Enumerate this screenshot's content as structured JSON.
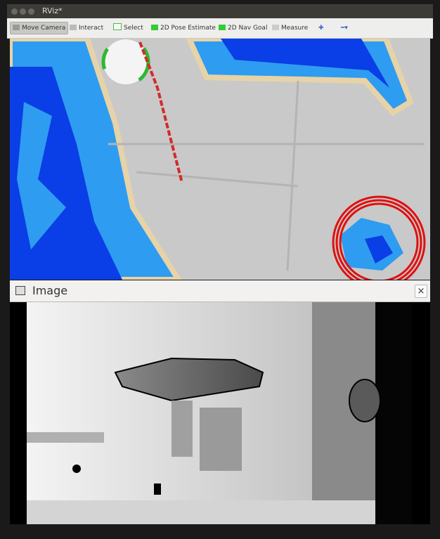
{
  "window": {
    "title": "RViz*"
  },
  "toolbar": {
    "items": [
      "Move Camera",
      "Interact",
      "Select",
      "2D Pose Estimate",
      "2D Nav Goal",
      "Measure"
    ]
  },
  "panel": {
    "title": "Image",
    "close": "×"
  }
}
